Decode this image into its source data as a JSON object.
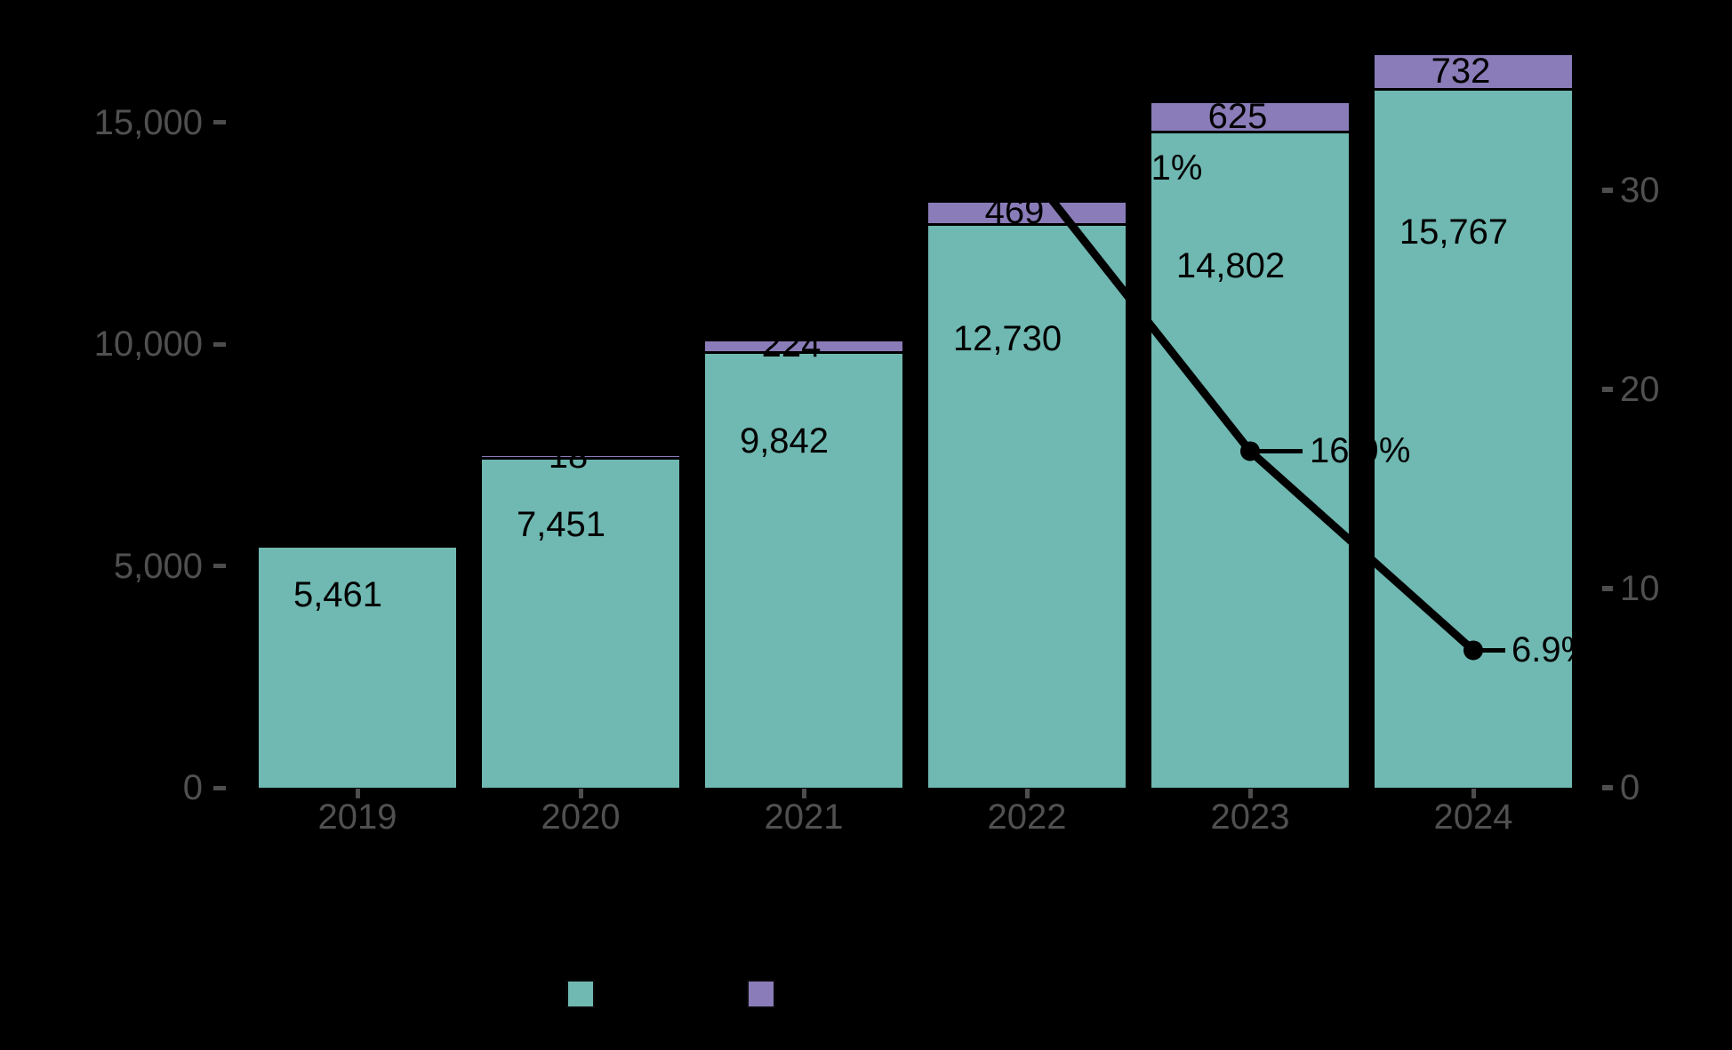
{
  "background": "#000000",
  "chart_data": {
    "type": "combo: stacked bar + line (line on secondary right axis)",
    "categories": [
      "2019",
      "2020",
      "2021",
      "2022",
      "2023",
      "2024"
    ],
    "series": [
      {
        "name": "base-volume-bars",
        "type": "bar",
        "stack": "base",
        "color": "#70B8B2",
        "values": [
          5461,
          7451,
          9842,
          12730,
          14802,
          15767
        ],
        "labels": [
          "5,461",
          "7,451",
          "9,842",
          "12,730",
          "14,802",
          "15,767"
        ]
      },
      {
        "name": "top-volume-bars",
        "type": "bar",
        "stack": "top",
        "color": "#8A7CB8",
        "values": [
          0,
          18,
          224,
          469,
          625,
          732
        ],
        "labels": [
          "",
          "18",
          "224",
          "469",
          "625",
          "732"
        ]
      },
      {
        "name": "growth-rate-line",
        "type": "line",
        "axis": "right",
        "color": "#000000",
        "values": [
          null,
          null,
          null,
          31.1,
          16.9,
          6.9
        ],
        "labels": [
          "",
          "",
          "",
          "31.1%",
          "16.9%",
          "6.9%"
        ]
      }
    ],
    "left_axis": {
      "tick_values": [
        0,
        5000,
        10000,
        15000
      ],
      "tick_labels": [
        "0",
        "5,000",
        "10,000",
        "15,000"
      ]
    },
    "right_axis": {
      "tick_values": [
        0,
        10,
        20,
        30
      ],
      "tick_labels": [
        "0",
        "10",
        "20",
        "30"
      ]
    },
    "legend": [
      {
        "color": "#70B8B2",
        "label": ""
      },
      {
        "color": "#8A7CB8",
        "label": ""
      }
    ]
  },
  "colors": {
    "axis_text": "#505050",
    "tick_mark": "#4d4d4d",
    "data_label": "#000000",
    "line": "#000000"
  }
}
